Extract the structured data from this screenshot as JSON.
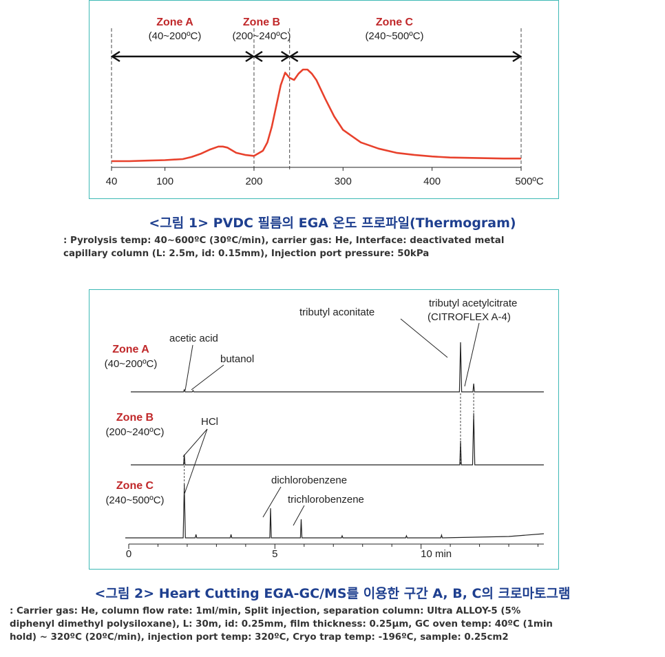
{
  "colors": {
    "zone_label": "#c0282a",
    "thermo_curve": "#e8412c",
    "frame": "#3bb8b4",
    "caption_title": "#1e3f8f",
    "chroma_line": "#222222"
  },
  "figure1": {
    "caption_title": "<그림 1> PVDC 필름의 EGA 온도 프로파일(Thermogram)",
    "caption_lines": [
      ": Pyrolysis temp: 40~600ºC (30ºC/min), carrier gas: He, Interface: deactivated metal",
      "capillary column (L: 2.5m, id: 0.15mm), Injection port pressure: 50kPa"
    ],
    "zones": [
      {
        "name": "Zone A",
        "range": "(40~200ºC)"
      },
      {
        "name": "Zone B",
        "range": "(200~240ºC)"
      },
      {
        "name": "Zone C",
        "range": "(240~500ºC)"
      }
    ]
  },
  "figure2": {
    "caption_title": "<그림 2> Heart Cutting EGA-GC/MS를 이용한 구간 A, B, C의 크로마토그램",
    "caption_lines": [
      ": Carrier gas: He, column flow rate: 1ml/min, Split injection, separation column: Ultra ALLOY-5 (5%",
      "diphenyl dimethyl polysiloxane), L: 30m, id: 0.25mm, film thickness: 0.25μm, GC oven temp: 40ºC (1min",
      "hold) ~ 320ºC (20ºC/min), injection port temp: 320ºC, Cryo trap temp: -196ºC, sample: 0.25cm2"
    ],
    "traces": [
      {
        "name": "Zone A",
        "range": "(40~200ºC)"
      },
      {
        "name": "Zone B",
        "range": "(200~240ºC)"
      },
      {
        "name": "Zone C",
        "range": "(240~500ºC)"
      }
    ],
    "annotations": {
      "acetic_acid": "acetic acid",
      "butanol": "butanol",
      "hcl": "HCl",
      "dichlorobenzene": "dichlorobenzene",
      "trichlorobenzene": "trichlorobenzene",
      "tributyl_aconitate": "tributyl aconitate",
      "tributyl_acetylcitrate": "tributyl acetylcitrate",
      "citroflex": "(CITROFLEX  A-4)"
    }
  },
  "chart_data": [
    {
      "type": "line",
      "xlim": [
        40,
        500
      ],
      "x_ticks": [
        "40",
        "100",
        "200",
        "300",
        "400",
        "500ºC"
      ],
      "x_tick_values": [
        40,
        100,
        200,
        300,
        400,
        500
      ],
      "zone_boundaries": [
        40,
        200,
        240,
        500
      ],
      "series": [
        {
          "x": [
            40,
            60,
            80,
            100,
            120,
            130,
            140,
            150,
            160,
            165,
            170,
            180,
            190,
            200,
            210,
            215,
            220,
            225,
            230,
            235,
            240,
            245,
            250,
            255,
            260,
            265,
            270,
            280,
            290,
            300,
            320,
            340,
            360,
            380,
            400,
            420,
            450,
            480,
            500
          ],
          "y": [
            0.02,
            0.02,
            0.025,
            0.03,
            0.04,
            0.06,
            0.09,
            0.13,
            0.16,
            0.16,
            0.15,
            0.1,
            0.08,
            0.07,
            0.12,
            0.2,
            0.35,
            0.55,
            0.75,
            0.87,
            0.82,
            0.8,
            0.86,
            0.9,
            0.9,
            0.86,
            0.8,
            0.62,
            0.45,
            0.32,
            0.2,
            0.14,
            0.1,
            0.08,
            0.065,
            0.055,
            0.05,
            0.045,
            0.045
          ]
        }
      ]
    },
    {
      "type": "line",
      "xlim": [
        0,
        14.2
      ],
      "x_ticks": [
        "0",
        "5",
        "10 min"
      ],
      "x_tick_values": [
        0,
        5,
        10
      ],
      "series": [
        {
          "name": "Zone A",
          "peaks": [
            {
              "x": 1.9,
              "h": 0.03
            },
            {
              "x": 2.2,
              "h": 0.02
            },
            {
              "x": 11.35,
              "h": 0.72
            },
            {
              "x": 11.8,
              "h": 0.12
            }
          ]
        },
        {
          "name": "Zone B",
          "peaks": [
            {
              "x": 1.9,
              "h": 0.15
            },
            {
              "x": 11.35,
              "h": 0.35
            },
            {
              "x": 11.8,
              "h": 0.75
            }
          ]
        },
        {
          "name": "Zone C",
          "peaks": [
            {
              "x": 1.9,
              "h": 0.78
            },
            {
              "x": 2.3,
              "h": 0.05
            },
            {
              "x": 3.5,
              "h": 0.05
            },
            {
              "x": 4.85,
              "h": 0.43
            },
            {
              "x": 5.9,
              "h": 0.27
            },
            {
              "x": 7.3,
              "h": 0.03
            },
            {
              "x": 9.5,
              "h": 0.03
            },
            {
              "x": 10.7,
              "h": 0.04
            }
          ]
        }
      ]
    }
  ]
}
